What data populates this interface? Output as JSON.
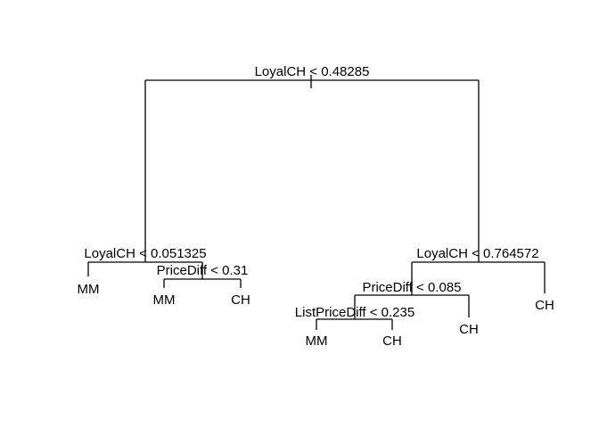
{
  "tree": {
    "splits": {
      "root": "LoyalCH < 0.48285",
      "left": "LoyalCH < 0.051325",
      "left_right": "PriceDiff < 0.31",
      "right": "LoyalCH < 0.764572",
      "right_left": "PriceDiff < 0.085",
      "right_left_left": "ListPriceDiff < 0.235"
    },
    "leaves": {
      "left_left": "MM",
      "left_right_left": "MM",
      "left_right_right": "CH",
      "right_left_left_left": "MM",
      "right_left_left_right": "CH",
      "right_left_right": "CH",
      "right_right": "CH"
    }
  }
}
